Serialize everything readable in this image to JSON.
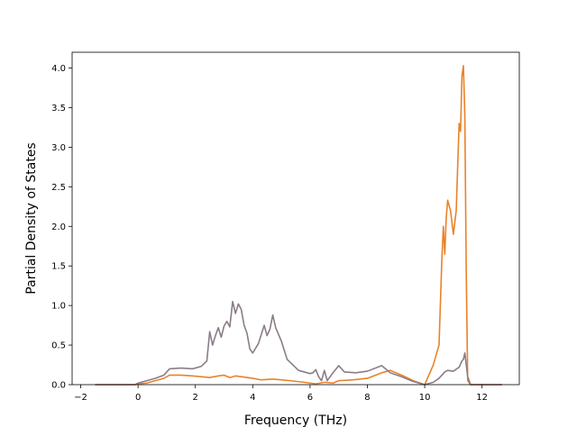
{
  "chart_data": {
    "type": "line",
    "title": "",
    "xlabel": "Frequency (THz)",
    "ylabel": "Partial Density of States",
    "xlim": [
      -2.3,
      13.3
    ],
    "ylim": [
      0.0,
      4.2
    ],
    "xticks": [
      -2,
      0,
      2,
      4,
      6,
      8,
      10,
      12
    ],
    "yticks": [
      0.0,
      0.5,
      1.0,
      1.5,
      2.0,
      2.5,
      3.0,
      3.5,
      4.0
    ],
    "xtick_labels": [
      "−2",
      "0",
      "2",
      "4",
      "6",
      "8",
      "10",
      "12"
    ],
    "ytick_labels": [
      "0.0",
      "0.5",
      "1.0",
      "1.5",
      "2.0",
      "2.5",
      "3.0",
      "3.5",
      "4.0"
    ],
    "grid": false,
    "legend": false,
    "series": [
      {
        "color": "#e8832a",
        "x": [
          -1.5,
          -0.1,
          0.0,
          0.3,
          0.6,
          0.9,
          1.1,
          1.5,
          1.9,
          2.2,
          2.5,
          2.8,
          3.0,
          3.2,
          3.4,
          3.6,
          3.8,
          4.0,
          4.3,
          4.7,
          5.0,
          5.3,
          5.8,
          6.0,
          6.2,
          6.5,
          6.8,
          7.0,
          7.5,
          8.0,
          8.5,
          8.8,
          9.2,
          9.6,
          10.0,
          10.3,
          10.5,
          10.6,
          10.65,
          10.7,
          10.75,
          10.8,
          10.9,
          11.0,
          11.1,
          11.2,
          11.25,
          11.3,
          11.35,
          11.4,
          11.45,
          11.5,
          11.6,
          12.7
        ],
        "y": [
          0.0,
          0.0,
          0.01,
          0.02,
          0.05,
          0.08,
          0.12,
          0.12,
          0.11,
          0.1,
          0.09,
          0.11,
          0.12,
          0.09,
          0.11,
          0.1,
          0.09,
          0.08,
          0.06,
          0.07,
          0.06,
          0.05,
          0.03,
          0.02,
          0.01,
          0.03,
          0.02,
          0.05,
          0.06,
          0.08,
          0.15,
          0.18,
          0.12,
          0.05,
          0.0,
          0.25,
          0.5,
          1.6,
          2.0,
          1.65,
          2.1,
          2.33,
          2.2,
          1.9,
          2.2,
          3.3,
          3.2,
          3.9,
          4.03,
          3.4,
          1.4,
          0.05,
          0.0,
          0.0
        ]
      },
      {
        "color": "#8a7d88",
        "x": [
          -1.5,
          -0.1,
          0.0,
          0.3,
          0.6,
          0.9,
          1.1,
          1.5,
          1.9,
          2.2,
          2.4,
          2.5,
          2.6,
          2.7,
          2.8,
          2.9,
          3.0,
          3.1,
          3.2,
          3.3,
          3.4,
          3.5,
          3.6,
          3.7,
          3.8,
          3.9,
          4.0,
          4.2,
          4.4,
          4.5,
          4.6,
          4.7,
          4.8,
          5.0,
          5.2,
          5.6,
          6.0,
          6.1,
          6.2,
          6.3,
          6.4,
          6.5,
          6.6,
          6.8,
          7.0,
          7.2,
          7.6,
          8.0,
          8.5,
          8.8,
          9.2,
          9.6,
          10.0,
          10.3,
          10.5,
          10.7,
          10.8,
          11.0,
          11.2,
          11.3,
          11.35,
          11.4,
          11.5,
          11.6,
          12.7
        ],
        "y": [
          0.0,
          0.0,
          0.02,
          0.05,
          0.08,
          0.12,
          0.2,
          0.21,
          0.2,
          0.23,
          0.3,
          0.67,
          0.5,
          0.62,
          0.72,
          0.6,
          0.74,
          0.8,
          0.73,
          1.05,
          0.9,
          1.02,
          0.95,
          0.75,
          0.65,
          0.45,
          0.4,
          0.52,
          0.75,
          0.62,
          0.7,
          0.88,
          0.72,
          0.55,
          0.32,
          0.18,
          0.14,
          0.15,
          0.19,
          0.1,
          0.05,
          0.18,
          0.05,
          0.15,
          0.24,
          0.16,
          0.15,
          0.17,
          0.24,
          0.15,
          0.1,
          0.04,
          0.0,
          0.03,
          0.08,
          0.16,
          0.18,
          0.17,
          0.22,
          0.3,
          0.32,
          0.4,
          0.1,
          0.0,
          0.0
        ]
      }
    ]
  }
}
